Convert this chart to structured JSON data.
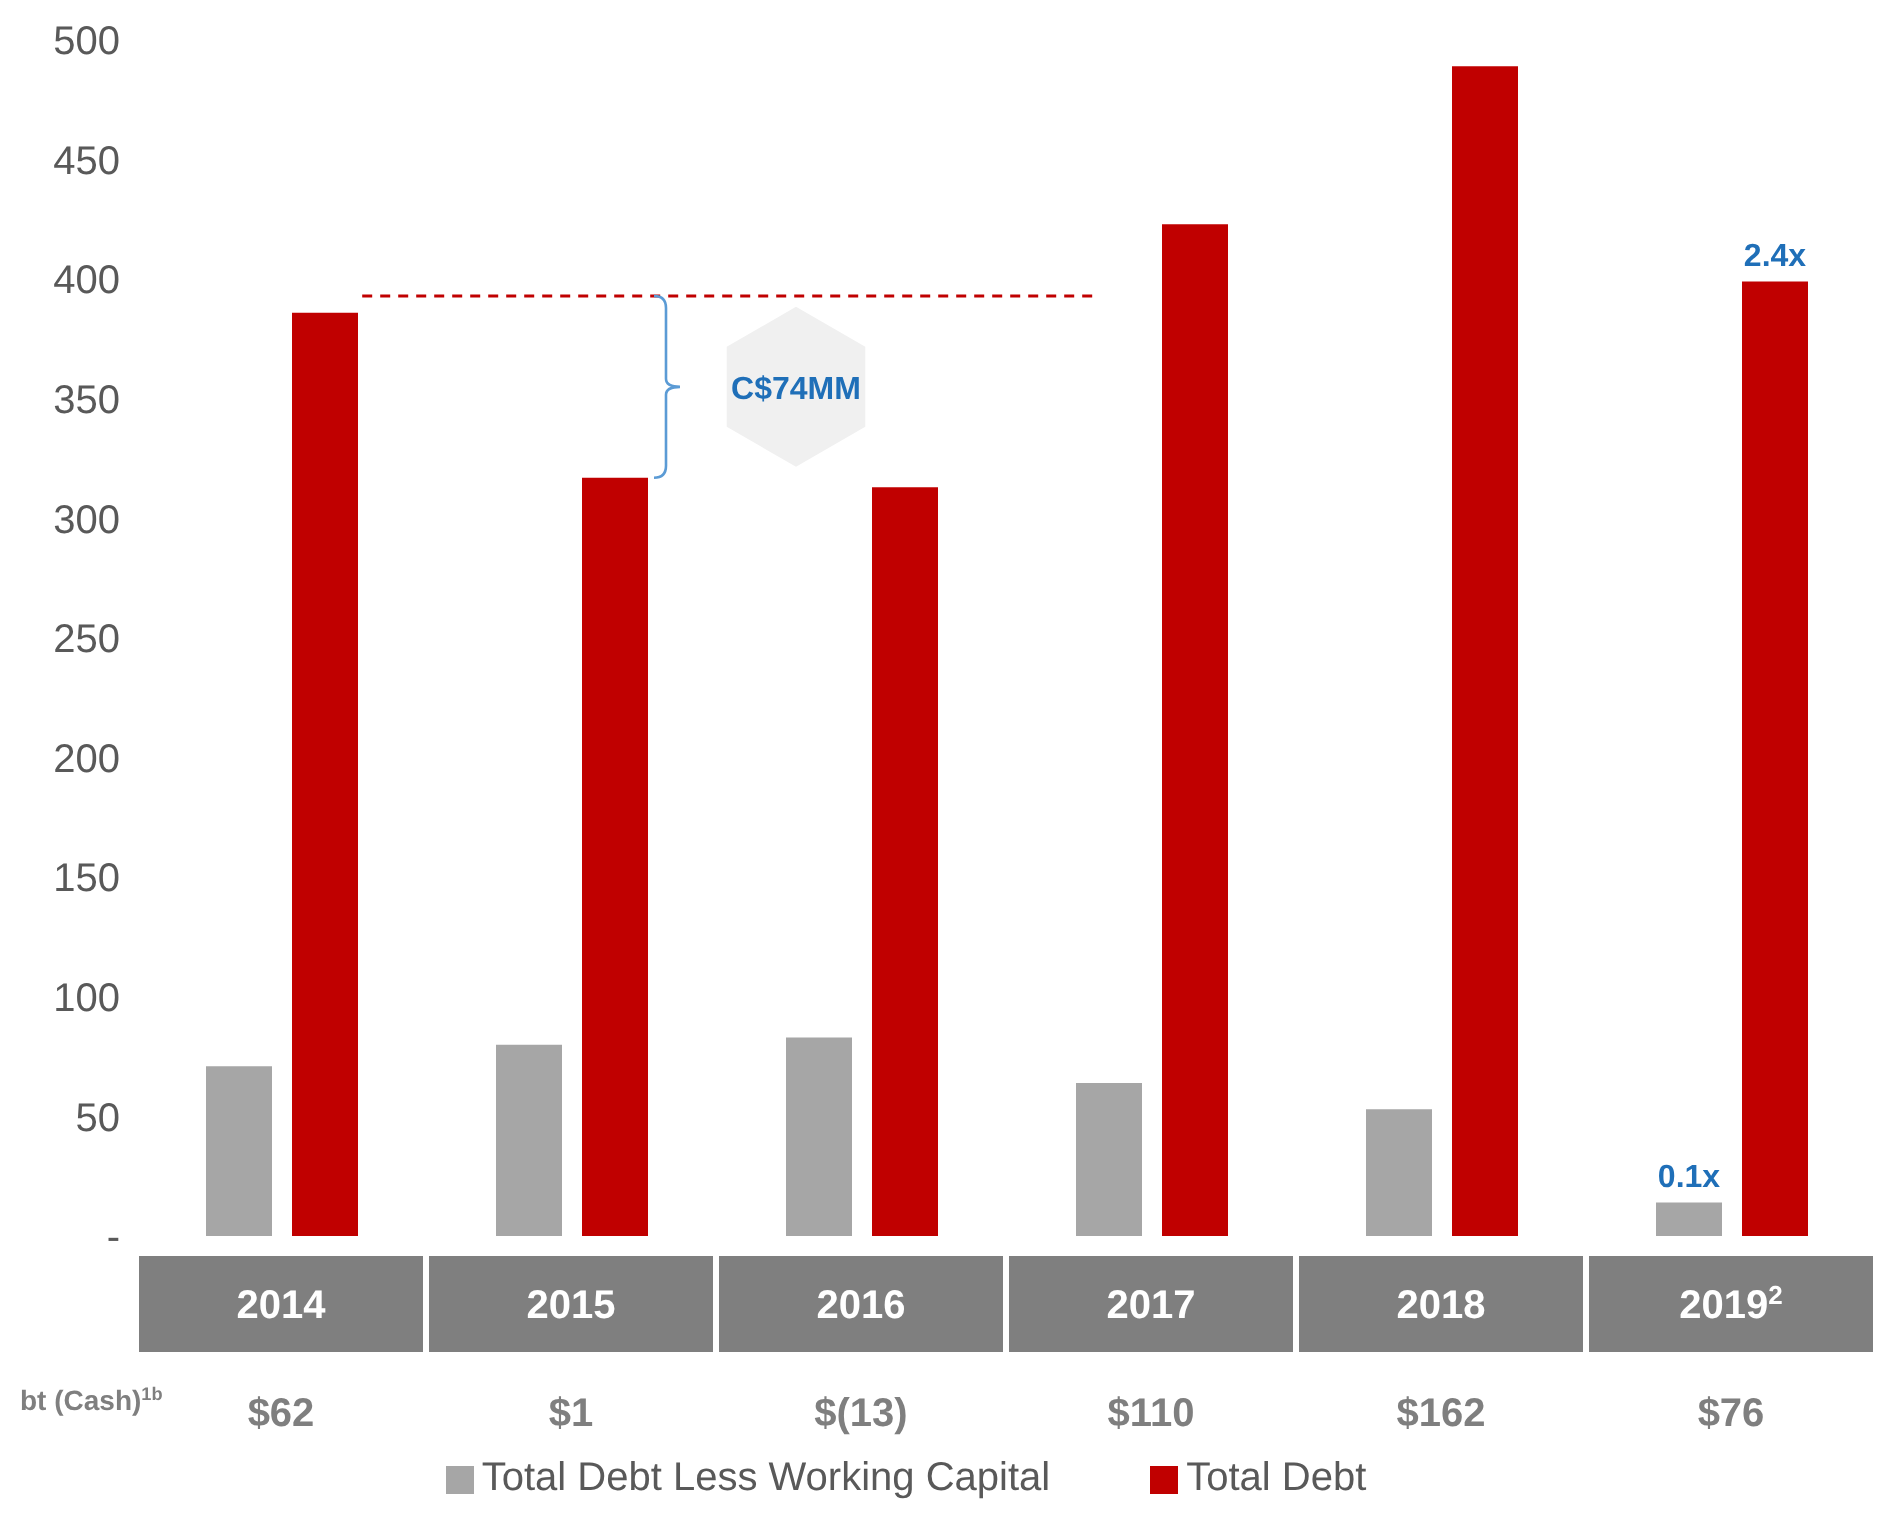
{
  "chart_data": {
    "type": "bar",
    "categories": [
      "2014",
      "2015",
      "2016",
      "2017",
      "2018",
      "2019$^{2}$"
    ],
    "series": [
      {
        "name": "Total Debt Less Working Capital",
        "color": "#a6a6a6",
        "values": [
          71,
          80,
          83,
          64,
          53,
          14
        ]
      },
      {
        "name": "Total Debt",
        "color": "#c00000",
        "values": [
          386,
          317,
          313,
          423,
          489,
          399
        ]
      }
    ],
    "ylim": [
      0,
      500
    ],
    "yticks": [
      {
        "value": 0,
        "label": "-"
      },
      50,
      100,
      150,
      200,
      250,
      300,
      350,
      400,
      450,
      500
    ],
    "grid": false,
    "legend": "bottom",
    "ref_lines": [
      {
        "axis": "y",
        "value": 393,
        "color": "#c00000",
        "line_style": "dashed"
      }
    ],
    "annotations": [
      "C$74MM",
      "bt (Cash)$^{1b}$",
      "$62",
      "$1",
      "$(13)",
      "$110",
      "$162",
      "$76",
      "0.1x",
      "2.4x"
    ]
  }
}
